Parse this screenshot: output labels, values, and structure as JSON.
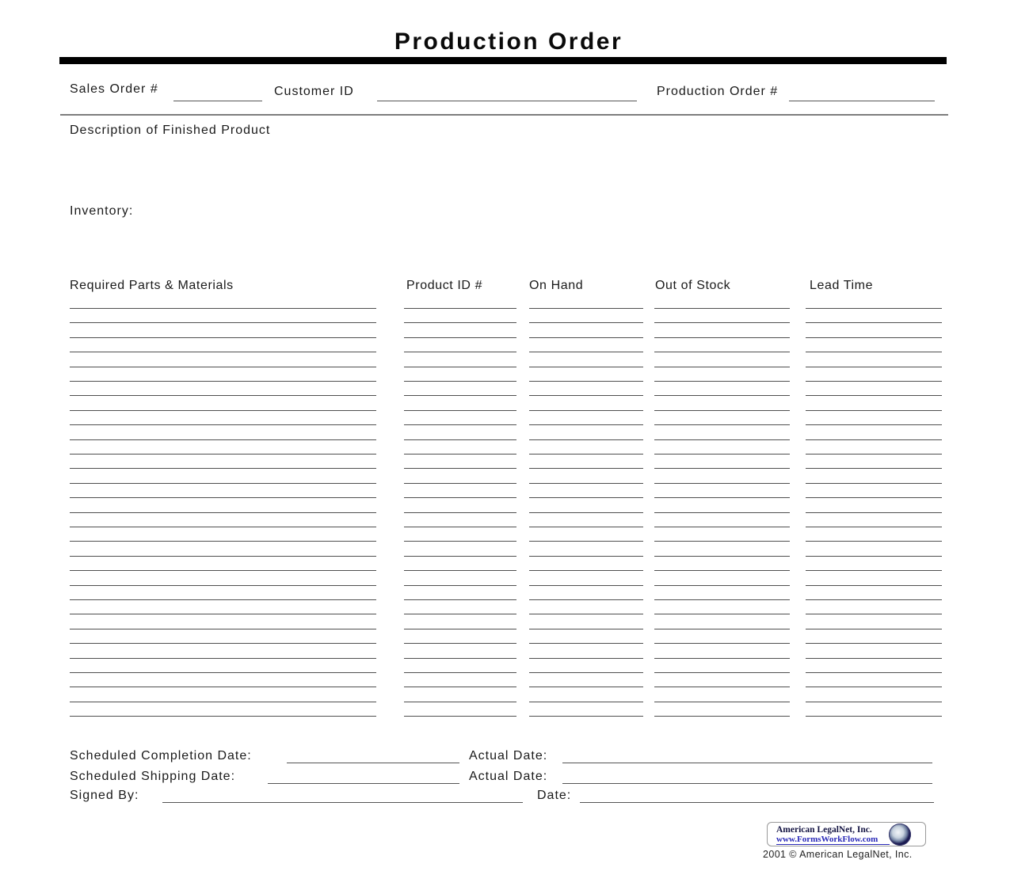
{
  "document": {
    "title": "Production Order",
    "header": {
      "sales_order_label": "Sales Order #",
      "customer_id_label": "Customer ID",
      "production_order_label": "Production Order #"
    },
    "description_label": "Description of Finished Product",
    "inventory_label": "Inventory:",
    "table": {
      "columns": [
        {
          "label": "Required Parts & Materials"
        },
        {
          "label": "Product ID #"
        },
        {
          "label": "On Hand"
        },
        {
          "label": "Out of Stock"
        },
        {
          "label": "Lead Time"
        }
      ],
      "blank_row_count": 29
    },
    "footer": {
      "scheduled_completion_label": "Scheduled Completion Date:",
      "actual_date_label_1": "Actual Date:",
      "scheduled_shipping_label": "Scheduled Shipping Date:",
      "actual_date_label_2": "Actual Date:",
      "signed_by_label": "Signed By:",
      "date_label": "Date:"
    },
    "branding": {
      "company": "American LegalNet, Inc.",
      "website": "www.FormsWorkFlow.com",
      "copyright": "2001 © American LegalNet, Inc.",
      "colors": {
        "link": "#2929b8",
        "navy": "#131342",
        "title_bar": "#000000"
      }
    }
  }
}
